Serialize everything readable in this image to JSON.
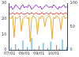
{
  "chart_data": {
    "type": "line",
    "categories": [
      "07/01",
      null,
      null,
      null,
      null,
      null,
      null,
      null,
      null,
      null,
      "08/01",
      null,
      null,
      null,
      null,
      null,
      null,
      null,
      null,
      null,
      "09/01",
      null,
      null,
      null,
      null,
      null,
      null,
      null,
      null,
      null,
      "10/01",
      null,
      null,
      null,
      null,
      null,
      null,
      null,
      null,
      null
    ],
    "series": [
      {
        "color": "#9b30d9",
        "type": "line",
        "axis": "y",
        "values": [
          27,
          28,
          26,
          27,
          29,
          28,
          27,
          26,
          28,
          29,
          27,
          28,
          27,
          29,
          28,
          26,
          27,
          28,
          29,
          28,
          27,
          28,
          26,
          27,
          28,
          29,
          28,
          27,
          28,
          27,
          29,
          28,
          27,
          26,
          28,
          27,
          28,
          29,
          27,
          28
        ]
      },
      {
        "color": "#e03c3c",
        "type": "line",
        "axis": "y",
        "values": [
          23,
          23,
          24,
          23,
          23,
          24,
          23,
          23,
          24,
          23,
          23,
          23,
          24,
          23,
          23,
          24,
          23,
          23,
          24,
          23,
          23,
          23,
          24,
          23,
          23,
          24,
          23,
          23,
          24,
          23,
          23,
          23,
          24,
          23,
          23,
          24,
          23,
          23,
          24,
          23
        ]
      },
      {
        "color": "#f5a623",
        "type": "line",
        "axis": "y",
        "values": [
          21,
          20,
          22,
          8,
          21,
          20,
          21,
          22,
          12,
          20,
          21,
          22,
          20,
          21,
          5,
          20,
          22,
          21,
          20,
          10,
          21,
          20,
          22,
          21,
          15,
          20,
          21,
          22,
          20,
          7,
          21,
          20,
          22,
          21,
          20,
          13,
          21,
          22,
          20,
          21
        ]
      },
      {
        "color": "#4fa8e0",
        "type": "bar",
        "axis": "y2",
        "values": [
          0,
          5,
          0,
          0,
          12,
          0,
          3,
          0,
          0,
          20,
          0,
          0,
          6,
          0,
          0,
          25,
          0,
          2,
          0,
          0,
          8,
          0,
          0,
          15,
          0,
          0,
          4,
          0,
          18,
          0,
          0,
          0,
          10,
          0,
          3,
          0,
          22,
          0,
          0,
          6
        ]
      }
    ],
    "ylim": [
      0,
      30
    ],
    "yticks": [
      0,
      10,
      20,
      30
    ],
    "y2lim": [
      0,
      100
    ],
    "y2ticks": [
      0,
      50,
      100
    ],
    "grid": false
  }
}
